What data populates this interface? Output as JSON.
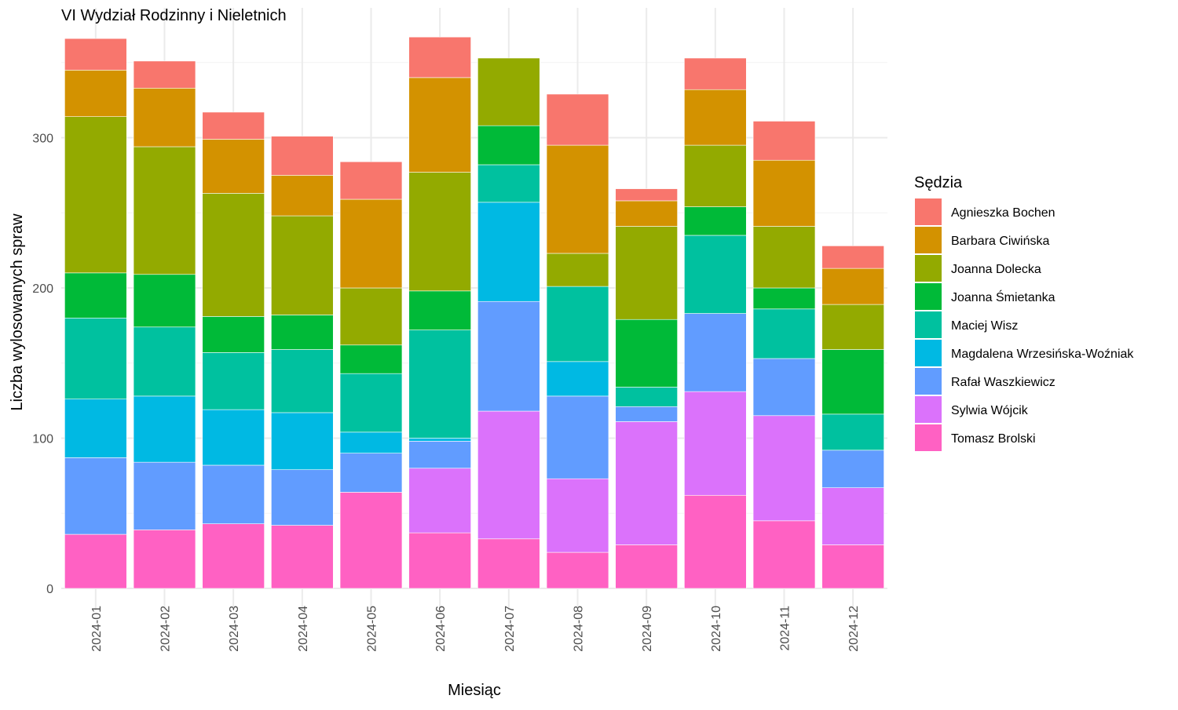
{
  "chart_data": {
    "type": "bar",
    "stacked": true,
    "title": "VI Wydział Rodzinny i Nieletnich",
    "xlabel": "Miesiąc",
    "ylabel": "Liczba wylosowanych spraw",
    "ylim": [
      0,
      380
    ],
    "yticks": [
      0,
      100,
      200,
      300
    ],
    "grid": true,
    "legend_position": "right",
    "legend_title": "Sędzia",
    "categories": [
      "2024-01",
      "2024-02",
      "2024-03",
      "2024-04",
      "2024-05",
      "2024-06",
      "2024-07",
      "2024-08",
      "2024-09",
      "2024-10",
      "2024-11",
      "2024-12"
    ],
    "series": [
      {
        "name": "Tomasz Brolski",
        "color": "#FF61C3",
        "values": [
          36,
          39,
          43,
          42,
          64,
          37,
          33,
          24,
          29,
          62,
          45,
          29
        ]
      },
      {
        "name": "Sylwia Wójcik",
        "color": "#DB72FB",
        "values": [
          0,
          0,
          0,
          0,
          0,
          43,
          85,
          49,
          82,
          69,
          70,
          38
        ]
      },
      {
        "name": "Rafał Waszkiewicz",
        "color": "#619CFF",
        "values": [
          51,
          45,
          39,
          37,
          26,
          18,
          73,
          55,
          10,
          52,
          38,
          25
        ]
      },
      {
        "name": "Magdalena Wrzesińska-Woźniak",
        "color": "#00B9E3",
        "values": [
          39,
          44,
          37,
          38,
          14,
          2,
          66,
          23,
          0,
          0,
          0,
          0
        ]
      },
      {
        "name": "Maciej Wisz",
        "color": "#00C19F",
        "values": [
          54,
          46,
          38,
          42,
          39,
          72,
          25,
          50,
          13,
          52,
          33,
          24
        ]
      },
      {
        "name": "Joanna Śmietanka",
        "color": "#00BA38",
        "values": [
          30,
          35,
          24,
          23,
          19,
          26,
          26,
          0,
          45,
          19,
          14,
          43
        ]
      },
      {
        "name": "Joanna Dolecka",
        "color": "#93AA00",
        "values": [
          104,
          85,
          82,
          66,
          38,
          79,
          45,
          22,
          62,
          41,
          41,
          30
        ]
      },
      {
        "name": "Barbara Ciwińska",
        "color": "#D39200",
        "values": [
          31,
          39,
          36,
          27,
          59,
          63,
          0,
          72,
          17,
          37,
          44,
          24
        ]
      },
      {
        "name": "Agnieszka Bochen",
        "color": "#F8766D",
        "values": [
          21,
          18,
          18,
          26,
          25,
          27,
          0,
          34,
          8,
          21,
          26,
          15
        ]
      }
    ],
    "legend_order": [
      "Agnieszka Bochen",
      "Barbara Ciwińska",
      "Joanna Dolecka",
      "Joanna Śmietanka",
      "Maciej Wisz",
      "Magdalena Wrzesińska-Woźniak",
      "Rafał Waszkiewicz",
      "Sylwia Wójcik",
      "Tomasz Brolski"
    ]
  }
}
